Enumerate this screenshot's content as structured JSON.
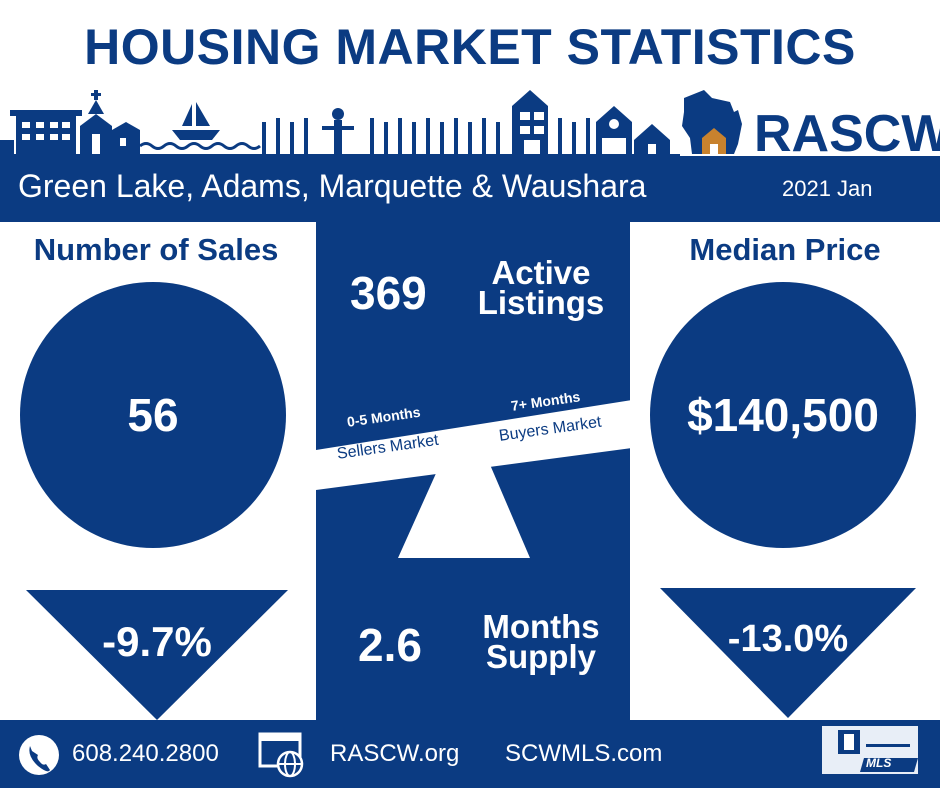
{
  "title": "HOUSING MARKET STATISTICS",
  "brand": "RASCW",
  "region": "Green Lake, Adams, Marquette & Waushara",
  "period": "2021 Jan",
  "colors": {
    "navy": "#0b3b82",
    "white": "#ffffff",
    "house_accent": "#c8822e"
  },
  "number_of_sales": {
    "heading": "Number of Sales",
    "value": "56",
    "change": "-9.7%"
  },
  "median_price": {
    "heading": "Median Price",
    "value": "$140,500",
    "change": "-13.0%"
  },
  "active_listings": {
    "value": "369",
    "label_line1": "Active",
    "label_line2": "Listings"
  },
  "scale": {
    "left_top": "0-5 Months",
    "left_bottom": "Sellers Market",
    "right_top": "7+ Months",
    "right_bottom": "Buyers Market"
  },
  "months_supply": {
    "value": "2.6",
    "label_line1": "Months",
    "label_line2": "Supply"
  },
  "footer": {
    "phone": "608.240.2800",
    "site1": "RASCW.org",
    "site2": "SCWMLS.com",
    "mls_text": "MLS"
  },
  "icons": [
    "skyline-illustration",
    "wisconsin-map-icon",
    "phone-icon",
    "web-globe-icon",
    "realtor-mls-logo"
  ]
}
